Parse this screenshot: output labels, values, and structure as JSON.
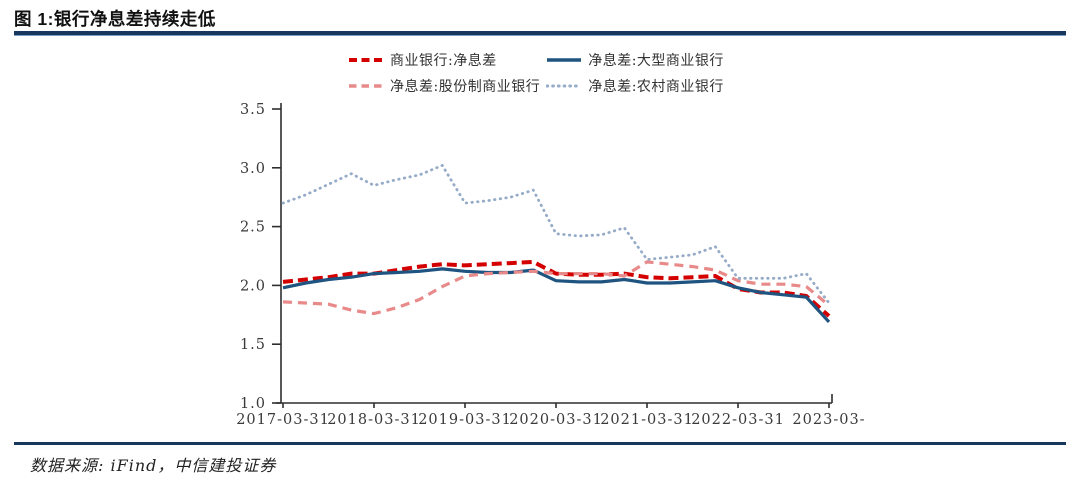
{
  "header": {
    "title": "图 1:银行净息差持续走低"
  },
  "footer": {
    "source": "数据来源: iFind，中信建投证券"
  },
  "colors": {
    "accent_rule": "#17375D",
    "axis": "#2E2E2E",
    "tick_text": "#3A3A3A"
  },
  "chart_data": {
    "type": "line",
    "title": "银行净息差持续走低",
    "xlabel": "",
    "ylabel": "",
    "ylim": [
      1.0,
      3.5
    ],
    "yticks": [
      1.0,
      1.5,
      2.0,
      2.5,
      3.0,
      3.5
    ],
    "grid": false,
    "legend_position": "top-center",
    "x": [
      "2017-03-31",
      "2017-06-30",
      "2017-09-30",
      "2017-12-31",
      "2018-03-31",
      "2018-06-30",
      "2018-09-30",
      "2018-12-31",
      "2019-03-31",
      "2019-06-30",
      "2019-09-30",
      "2019-12-31",
      "2020-03-31",
      "2020-06-30",
      "2020-09-30",
      "2020-12-31",
      "2021-03-31",
      "2021-06-30",
      "2021-09-30",
      "2021-12-31",
      "2022-03-31",
      "2022-06-30",
      "2022-09-30",
      "2022-12-31",
      "2023-03-31"
    ],
    "x_tick_labels": [
      "2017-03-31",
      "2018-03-31",
      "2019-03-31",
      "2020-03-31",
      "2021-03-31",
      "2022-03-31",
      "2023-03-"
    ],
    "series": [
      {
        "name": "商业银行:净息差",
        "color": "#D40000",
        "style": "dashed-bold",
        "values": [
          2.03,
          2.05,
          2.07,
          2.1,
          2.1,
          2.13,
          2.16,
          2.18,
          2.17,
          2.18,
          2.19,
          2.2,
          2.1,
          2.09,
          2.09,
          2.1,
          2.07,
          2.06,
          2.07,
          2.08,
          1.97,
          1.94,
          1.94,
          1.91,
          1.74
        ]
      },
      {
        "name": "净息差:大型商业银行",
        "color": "#1F5380",
        "style": "solid",
        "values": [
          1.98,
          2.02,
          2.05,
          2.07,
          2.1,
          2.11,
          2.12,
          2.14,
          2.12,
          2.11,
          2.11,
          2.13,
          2.04,
          2.03,
          2.03,
          2.05,
          2.02,
          2.02,
          2.03,
          2.04,
          1.98,
          1.94,
          1.92,
          1.9,
          1.69
        ]
      },
      {
        "name": "净息差:股份制商业银行",
        "color": "#E98A8A",
        "style": "dashed",
        "values": [
          1.86,
          1.85,
          1.84,
          1.79,
          1.76,
          1.81,
          1.88,
          1.99,
          2.08,
          2.1,
          2.11,
          2.12,
          2.1,
          2.1,
          2.1,
          2.08,
          2.2,
          2.18,
          2.16,
          2.13,
          2.04,
          2.01,
          2.01,
          1.99,
          1.83
        ]
      },
      {
        "name": "净息差:农村商业银行",
        "color": "#95ABC7",
        "style": "dotted",
        "values": [
          2.7,
          2.77,
          2.86,
          2.95,
          2.85,
          2.9,
          2.94,
          3.02,
          2.7,
          2.72,
          2.75,
          2.81,
          2.44,
          2.42,
          2.43,
          2.49,
          2.22,
          2.24,
          2.26,
          2.33,
          2.06,
          2.06,
          2.06,
          2.1,
          1.85
        ]
      }
    ]
  }
}
